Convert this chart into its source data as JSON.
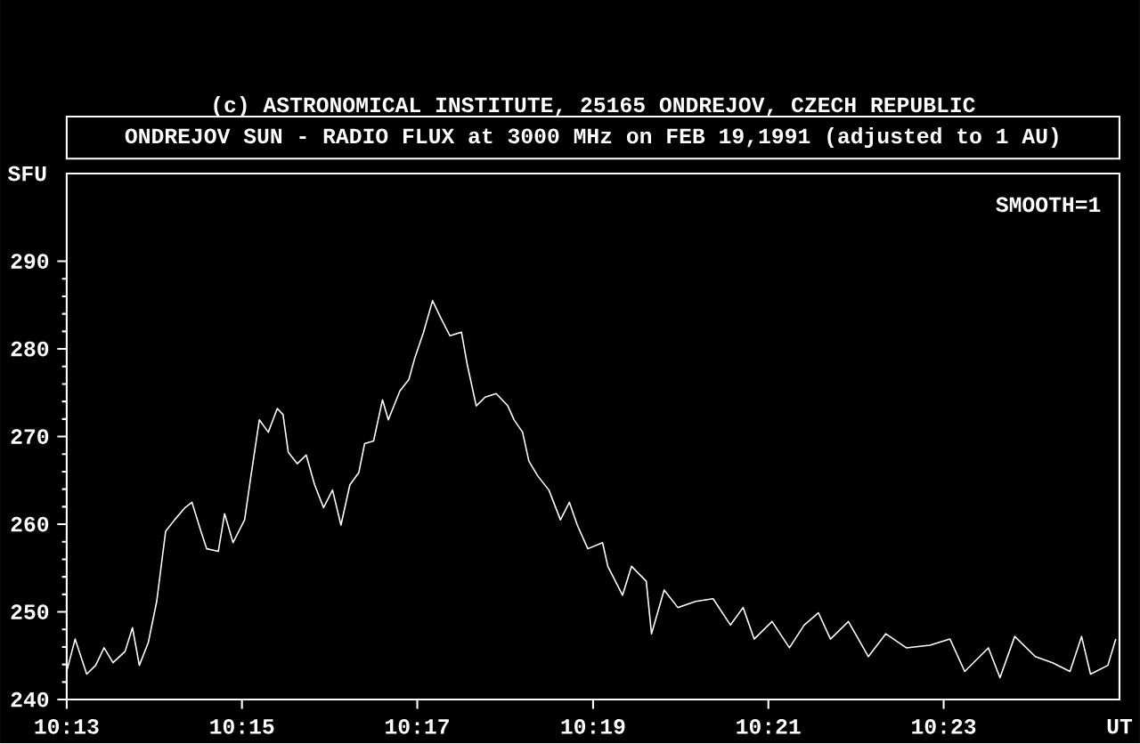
{
  "chart_data": {
    "type": "line",
    "title": "ONDREJOV SUN - RADIO FLUX at 3000 MHz on FEB 19,1991 (adjusted to 1 AU)",
    "annotations": [
      "(c) ASTRONOMICAL INSTITUTE, 25165 ONDREJOV, CZECH REPUBLIC",
      "SMOOTH=1"
    ],
    "xlabel": "UT",
    "ylabel": "SFU",
    "xlim": [
      10.2167,
      10.4167
    ],
    "xticks": [
      {
        "value": 10.2167,
        "label": "10:13"
      },
      {
        "value": 10.25,
        "label": "10:15"
      },
      {
        "value": 10.2833,
        "label": "10:17"
      },
      {
        "value": 10.3167,
        "label": "10:19"
      },
      {
        "value": 10.35,
        "label": "10:21"
      },
      {
        "value": 10.3833,
        "label": "10:23"
      }
    ],
    "ylim": [
      240,
      300
    ],
    "yticks": [
      240,
      250,
      260,
      270,
      280,
      290
    ],
    "series": [
      {
        "color": "#ffffff",
        "x": [
          10.2167,
          10.2183,
          10.2205,
          10.2222,
          10.2238,
          10.2255,
          10.2278,
          10.2292,
          10.2305,
          10.2322,
          10.2338,
          10.2355,
          10.2372,
          10.2392,
          10.2405,
          10.2422,
          10.2433,
          10.2455,
          10.2467,
          10.2483,
          10.2505,
          10.2517,
          10.2533,
          10.255,
          10.2567,
          10.2578,
          10.2588,
          10.2605,
          10.2622,
          10.2638,
          10.2655,
          10.2672,
          10.2688,
          10.2705,
          10.2722,
          10.2733,
          10.275,
          10.2767,
          10.2778,
          10.28,
          10.2817,
          10.2828,
          10.2845,
          10.2862,
          10.2878,
          10.2895,
          10.2917,
          10.2928,
          10.2945,
          10.2962,
          10.2983,
          10.3005,
          10.3017,
          10.3033,
          10.3045,
          10.3062,
          10.3083,
          10.3105,
          10.3122,
          10.3137,
          10.3157,
          10.3185,
          10.3195,
          10.3223,
          10.324,
          10.3268,
          10.3278,
          10.3302,
          10.3328,
          10.3362,
          10.3395,
          10.3428,
          10.3452,
          10.3473,
          10.3507,
          10.354,
          10.3568,
          10.3595,
          10.3618,
          10.3652,
          10.369,
          10.3723,
          10.3762,
          10.3807,
          10.3845,
          10.3873,
          10.3918,
          10.394,
          10.3968,
          10.4007,
          10.404,
          10.4073,
          10.4095,
          10.4112,
          10.4145,
          10.416
        ],
        "values": [
          243.2,
          246.9,
          242.9,
          243.9,
          245.9,
          244.2,
          245.5,
          248.2,
          243.9,
          246.5,
          251.2,
          259.2,
          260.5,
          261.9,
          262.5,
          259.2,
          257.2,
          256.9,
          261.2,
          257.9,
          260.5,
          265.5,
          271.9,
          270.5,
          273.2,
          272.5,
          268.2,
          266.9,
          267.9,
          264.5,
          261.9,
          263.9,
          259.9,
          264.5,
          265.9,
          269.2,
          269.5,
          274.2,
          271.9,
          275.2,
          276.5,
          278.9,
          281.9,
          285.5,
          283.5,
          281.5,
          281.9,
          278.2,
          273.5,
          274.5,
          274.9,
          273.5,
          271.9,
          270.5,
          267.2,
          265.5,
          263.9,
          260.5,
          262.5,
          259.9,
          257.2,
          257.9,
          255.2,
          251.9,
          255.2,
          253.5,
          247.5,
          252.5,
          250.5,
          251.2,
          251.5,
          248.5,
          250.5,
          246.9,
          248.9,
          245.9,
          248.5,
          249.9,
          246.9,
          248.9,
          244.9,
          247.5,
          245.9,
          246.2,
          246.9,
          243.2,
          245.9,
          242.5,
          247.2,
          244.9,
          244.2,
          243.2,
          247.2,
          242.9,
          243.9,
          246.9
        ]
      }
    ]
  }
}
